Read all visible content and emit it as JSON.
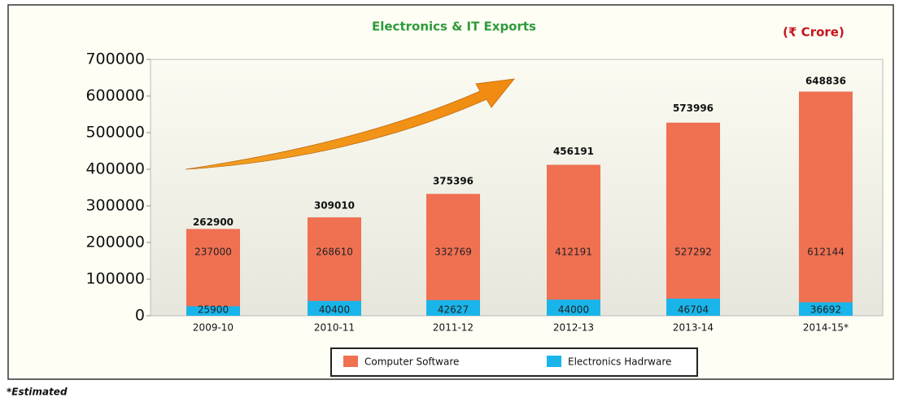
{
  "chart_data": {
    "type": "bar",
    "title": "Electronics & IT Exports",
    "subtitle": "(₹ Crore)",
    "categories": [
      "2009-10",
      "2010-11",
      "2011-12",
      "2012-13",
      "2013-14",
      "2014-15*"
    ],
    "series": [
      {
        "name": "Computer Software",
        "color": "#f07052",
        "values": [
          237000,
          268610,
          332769,
          412191,
          527292,
          612144
        ]
      },
      {
        "name": "Electronics Hadrware",
        "color": "#19b5ea",
        "values": [
          25900,
          40400,
          42627,
          44000,
          46704,
          36692
        ]
      }
    ],
    "totals": [
      262900,
      309010,
      375396,
      456191,
      573996,
      648836
    ],
    "ylim": [
      0,
      700000
    ],
    "yticks": [
      0,
      100000,
      200000,
      300000,
      400000,
      500000,
      600000,
      700000
    ],
    "footnote": "*Estimated"
  }
}
